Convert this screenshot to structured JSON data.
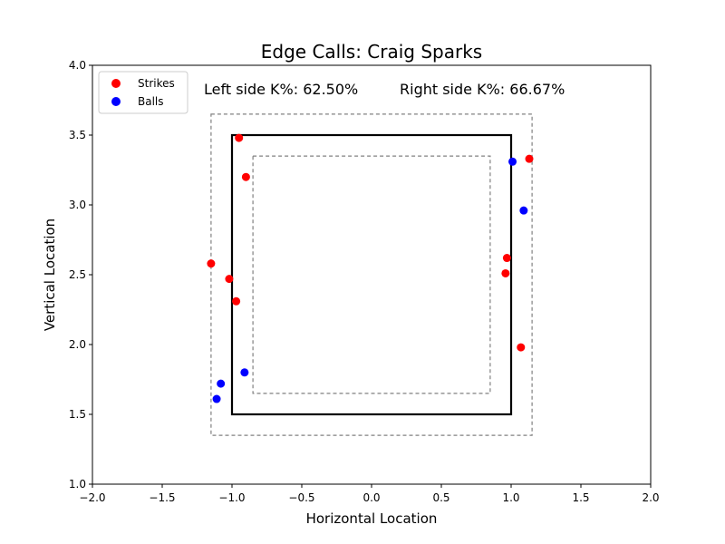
{
  "chart_data": {
    "type": "scatter",
    "title": "Edge Calls: Craig Sparks",
    "xlabel": "Horizontal Location",
    "ylabel": "Vertical Location",
    "xlim": [
      -2.0,
      2.0
    ],
    "ylim": [
      1.0,
      4.0
    ],
    "xticks": [
      "−2.0",
      "−1.5",
      "−1.0",
      "−0.5",
      "0.0",
      "0.5",
      "1.0",
      "1.5",
      "2.0"
    ],
    "yticks": [
      "1.0",
      "1.5",
      "2.0",
      "2.5",
      "3.0",
      "3.5",
      "4.0"
    ],
    "grid": false,
    "legend_position": "top-left",
    "annotations": {
      "left": "Left side K%: 62.50%",
      "right": "Right side K%: 66.67%"
    },
    "zones": {
      "strike_zone": {
        "x": [
          -1.0,
          1.0
        ],
        "y": [
          1.5,
          3.5
        ]
      },
      "outer_edge": {
        "x": [
          -1.15,
          1.15
        ],
        "y": [
          1.35,
          3.65
        ]
      },
      "inner_edge": {
        "x": [
          -0.85,
          0.85
        ],
        "y": [
          1.65,
          3.35
        ]
      }
    },
    "series": [
      {
        "name": "Strikes",
        "color": "#ff0000",
        "points": [
          {
            "x": -0.95,
            "y": 3.48
          },
          {
            "x": -0.9,
            "y": 3.2
          },
          {
            "x": -1.15,
            "y": 2.58
          },
          {
            "x": -1.02,
            "y": 2.47
          },
          {
            "x": -0.97,
            "y": 2.31
          },
          {
            "x": 1.13,
            "y": 3.33
          },
          {
            "x": 0.97,
            "y": 2.62
          },
          {
            "x": 0.96,
            "y": 2.51
          },
          {
            "x": 1.07,
            "y": 1.98
          }
        ]
      },
      {
        "name": "Balls",
        "color": "#0000ff",
        "points": [
          {
            "x": 1.01,
            "y": 3.31
          },
          {
            "x": 1.09,
            "y": 2.96
          },
          {
            "x": -0.91,
            "y": 1.8
          },
          {
            "x": -1.08,
            "y": 1.72
          },
          {
            "x": -1.11,
            "y": 1.61
          }
        ]
      }
    ]
  }
}
